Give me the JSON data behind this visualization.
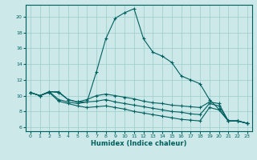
{
  "title": "",
  "xlabel": "Humidex (Indice chaleur)",
  "ylabel": "",
  "background_color": "#cce8e8",
  "grid_color": "#99cccc",
  "line_color": "#006060",
  "xlim": [
    -0.5,
    23.5
  ],
  "ylim": [
    5.5,
    21.5
  ],
  "xticks": [
    0,
    1,
    2,
    3,
    4,
    5,
    6,
    7,
    8,
    9,
    10,
    11,
    12,
    13,
    14,
    15,
    16,
    17,
    18,
    19,
    20,
    21,
    22,
    23
  ],
  "yticks": [
    6,
    8,
    10,
    12,
    14,
    16,
    18,
    20
  ],
  "series": [
    {
      "x": [
        0,
        1,
        2,
        3,
        4,
        5,
        6,
        7,
        8,
        9,
        10,
        11,
        12,
        13,
        14,
        15,
        16,
        17,
        18,
        19,
        20,
        21,
        22,
        23
      ],
      "y": [
        10.4,
        10.0,
        10.5,
        10.5,
        9.5,
        9.2,
        9.2,
        13.0,
        17.2,
        19.8,
        20.5,
        21.0,
        17.2,
        15.5,
        15.0,
        14.2,
        12.5,
        12.0,
        11.5,
        9.5,
        8.3,
        6.8,
        6.8,
        6.5
      ],
      "style": "-",
      "marker": "+"
    },
    {
      "x": [
        0,
        1,
        2,
        3,
        4,
        5,
        6,
        7,
        8,
        9,
        10,
        11,
        12,
        13,
        14,
        15,
        16,
        17,
        18,
        19,
        20,
        21,
        22,
        23
      ],
      "y": [
        10.4,
        10.0,
        10.5,
        10.4,
        9.5,
        9.2,
        9.5,
        10.0,
        10.2,
        10.0,
        9.8,
        9.6,
        9.3,
        9.1,
        9.0,
        8.8,
        8.7,
        8.6,
        8.5,
        9.2,
        9.0,
        6.8,
        6.8,
        6.5
      ],
      "style": "-",
      "marker": "+"
    },
    {
      "x": [
        0,
        1,
        2,
        3,
        4,
        5,
        6,
        7,
        8,
        9,
        10,
        11,
        12,
        13,
        14,
        15,
        16,
        17,
        18,
        19,
        20,
        21,
        22,
        23
      ],
      "y": [
        10.4,
        10.0,
        10.5,
        9.5,
        9.2,
        9.0,
        9.2,
        9.3,
        9.5,
        9.2,
        9.0,
        8.8,
        8.6,
        8.4,
        8.2,
        8.0,
        7.9,
        7.7,
        7.6,
        9.0,
        8.7,
        6.8,
        6.8,
        6.5
      ],
      "style": "-",
      "marker": "+"
    },
    {
      "x": [
        0,
        1,
        2,
        3,
        4,
        5,
        6,
        7,
        8,
        9,
        10,
        11,
        12,
        13,
        14,
        15,
        16,
        17,
        18,
        19,
        20,
        21,
        22,
        23
      ],
      "y": [
        10.4,
        10.0,
        10.4,
        9.3,
        9.0,
        8.7,
        8.5,
        8.6,
        8.7,
        8.5,
        8.3,
        8.0,
        7.8,
        7.6,
        7.4,
        7.2,
        7.0,
        6.9,
        6.8,
        8.5,
        8.2,
        6.8,
        6.8,
        6.5
      ],
      "style": "-",
      "marker": "+"
    }
  ]
}
